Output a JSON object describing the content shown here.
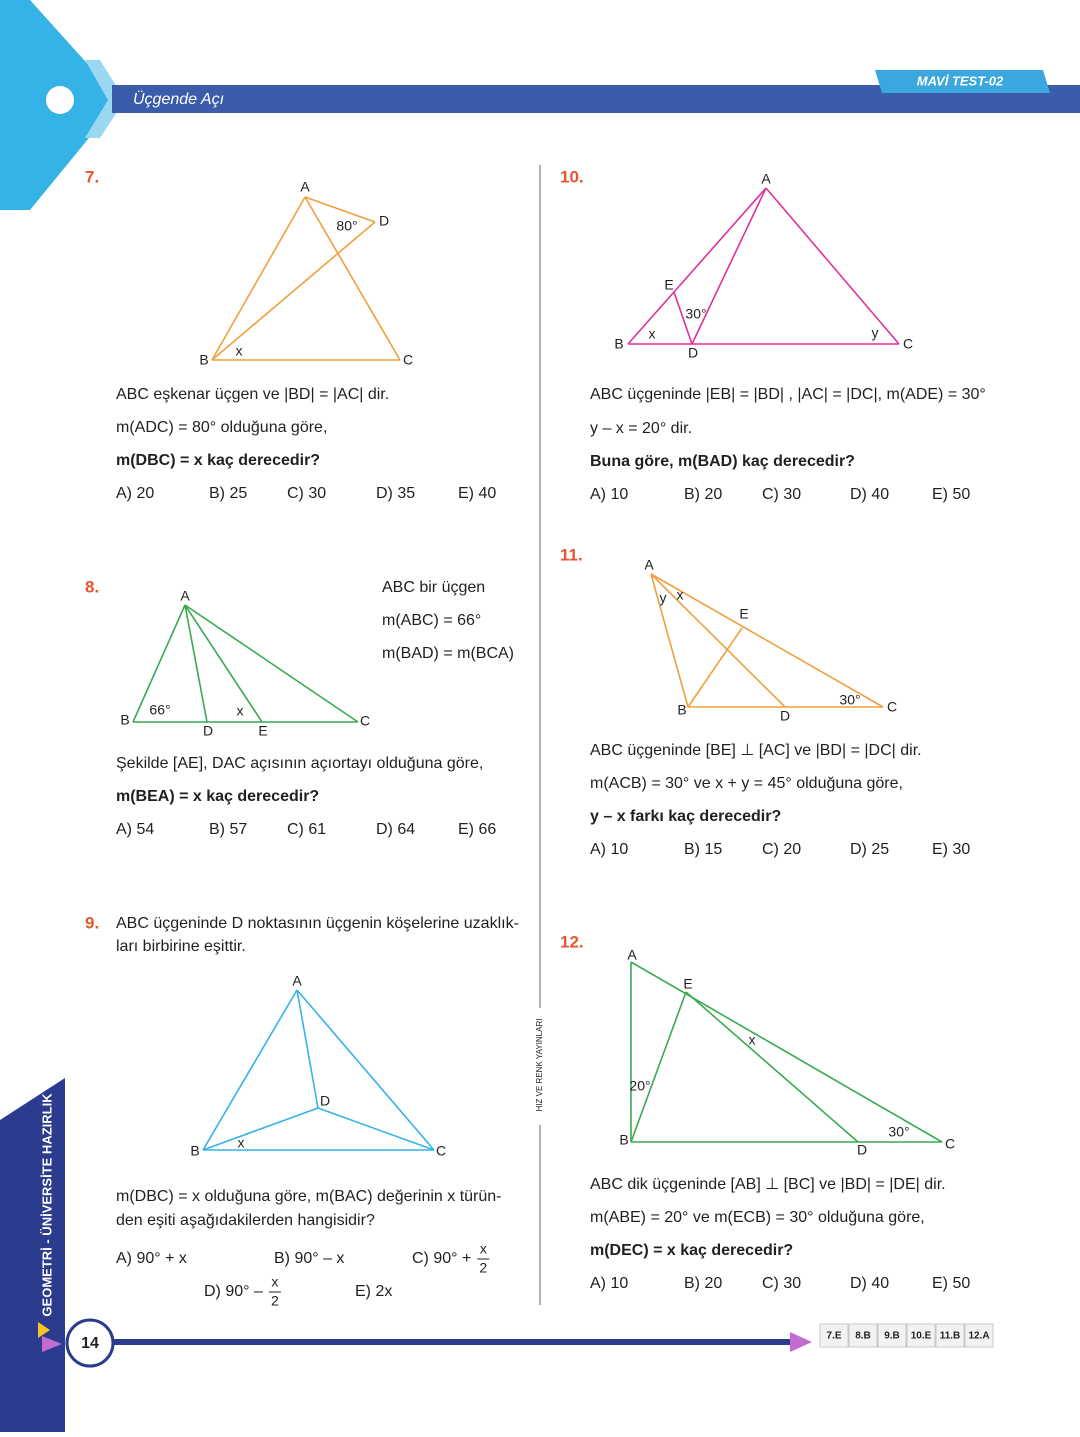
{
  "header": {
    "section": "Üçgende Açı",
    "test": "MAVİ TEST-02"
  },
  "sidebar": "GEOMETRİ - ÜNİVERSİTE HAZIRLIK",
  "publisher": "HIZ VE RENK YAYINLARI",
  "page_number": "14",
  "answer_key": [
    "7.E",
    "8.B",
    "9.B",
    "10.E",
    "11.B",
    "12.A"
  ],
  "questions": [
    {
      "number": "7.",
      "figure_labels": [
        "A",
        "D",
        "80°",
        "B",
        "x",
        "C"
      ],
      "lines": [
        "ABC eşkenar üçgen ve |BD| = |AC| dir.",
        "m(ADC) = 80° olduğuna göre,",
        "m(DBC) = x kaç derecedir?"
      ],
      "choices": [
        "A) 20",
        "B) 25",
        "C) 30",
        "D) 35",
        "E) 40"
      ]
    },
    {
      "number": "8.",
      "figure_labels": [
        "A",
        "B",
        "66°",
        "D",
        "x",
        "E",
        "C"
      ],
      "side_lines": [
        "ABC bir üçgen",
        "m(ABC) = 66°",
        "m(BAD) = m(BCA)"
      ],
      "lines": [
        "Şekilde [AE], DAC açısının açıortayı olduğuna göre,",
        "m(BEA) = x kaç derecedir?"
      ],
      "choices": [
        "A) 54",
        "B) 57",
        "C) 61",
        "D) 64",
        "E) 66"
      ]
    },
    {
      "number": "9.",
      "figure_labels": [
        "A",
        "D",
        "B",
        "x",
        "C"
      ],
      "lines": [
        "ABC üçgeninde D noktasının üçgenin köşelerine uzaklık-",
        "ları birbirine eşittir.",
        "m(DBC) = x olduğuna göre, m(BAC) değerinin x türün-",
        "den eşiti aşağıdakilerden hangisidir?"
      ],
      "choices": [
        {
          "text": "A) 90° + x"
        },
        {
          "text": "B) 90° – x"
        },
        {
          "text": "C) 90° +",
          "fraction": [
            "x",
            "2"
          ]
        },
        {
          "text": "D) 90° –",
          "fraction": [
            "x",
            "2"
          ]
        },
        {
          "text": "E) 2x"
        }
      ]
    },
    {
      "number": "10.",
      "figure_labels": [
        "A",
        "E",
        "30°",
        "B",
        "x",
        "D",
        "y",
        "C"
      ],
      "lines": [
        "ABC üçgeninde |EB| = |BD| , |AC| = |DC|, m(ADE) = 30°",
        "y – x = 20° dir.",
        "Buna göre, m(BAD) kaç derecedir?"
      ],
      "choices": [
        "A) 10",
        "B) 20",
        "C) 30",
        "D) 40",
        "E) 50"
      ]
    },
    {
      "number": "11.",
      "figure_labels": [
        "A",
        "y",
        "x",
        "E",
        "B",
        "D",
        "30°",
        "C"
      ],
      "lines": [
        "ABC üçgeninde [BE] ⊥ [AC] ve |BD| = |DC| dir.",
        "m(ACB) = 30° ve x + y = 45° olduğuna göre,",
        "y – x farkı kaç derecedir?"
      ],
      "choices": [
        "A) 10",
        "B) 15",
        "C) 20",
        "D) 25",
        "E) 30"
      ]
    },
    {
      "number": "12.",
      "figure_labels": [
        "A",
        "E",
        "x",
        "20°",
        "B",
        "D",
        "30°",
        "C"
      ],
      "lines": [
        "ABC dik üçgeninde [AB] ⊥ [BC] ve |BD| = |DE| dir.",
        "m(ABE) = 20° ve m(ECB) = 30° olduğuna göre,",
        "m(DEC) = x kaç derecedir?"
      ],
      "choices": [
        "A) 10",
        "B) 20",
        "C) 30",
        "D) 40",
        "E) 50"
      ]
    }
  ]
}
